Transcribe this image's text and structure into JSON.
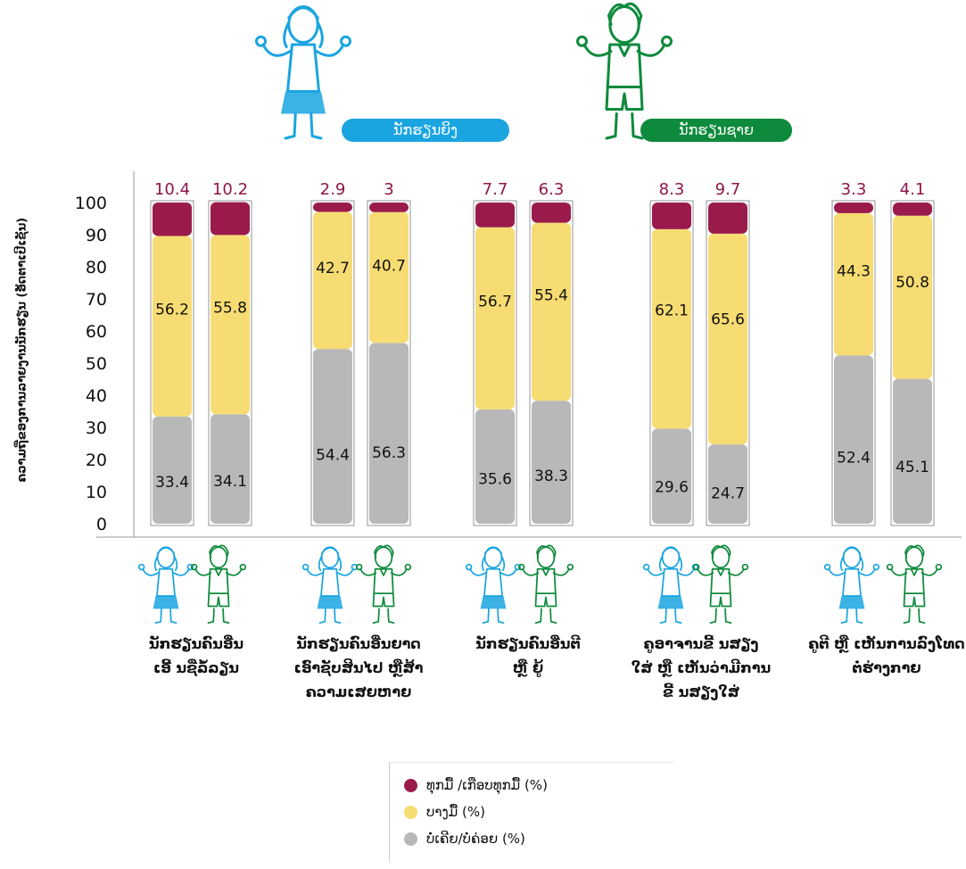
{
  "legend_colors": {
    "every": "#9a1b4b",
    "some": "#f7dc73",
    "never": "#b8b8b8",
    "girl": "#1aa5e0",
    "boy": "#0e8a3c"
  },
  "header": {
    "girl_label": "ນັກຮຽນຍິງ",
    "boy_label": "ນັກຮຽນຊາຍ"
  },
  "icons": {
    "girl": "girl-student-icon",
    "boy": "boy-student-icon"
  },
  "chart_data": {
    "type": "bar",
    "stacked": true,
    "ylabel": "ຄວາມຖີ່ຂອງການລາຍງານນັກຮຽນ (ອັດຕາເປີເຊັນ)",
    "ylim": [
      0,
      100
    ],
    "yticks": [
      0,
      10,
      20,
      30,
      40,
      50,
      60,
      70,
      80,
      90,
      100
    ],
    "grid": false,
    "categories": [
      "ນັກຮຽນຄົນອື່ນ\nເອີ້ ນຊື່ລໍ້ລຽນ",
      "ນັກຮຽນຄົນອື່ນຍາດ\nເອົາຊັບສິນໄປ ຫຼືສ້າ\nຄວາມເສຍຫາຍ",
      "ນັກຮຽນຄົນອື່ນຕີ\nຫຼື ຍູ້",
      "ຄູອາຈານຂີ້ ນສຽງ\nໃສ່ ຫຼື ເຫັນວ່າມີການ\nຂີ້ ນສຽງໃສ່",
      "ຄູຕີ ຫຼື ເຫັນການລົງໂທດ\nຕໍ່ຮ່າງກາຍ"
    ],
    "subcategories": [
      "ນັກຮຽນຍິງ",
      "ນັກຮຽນຊາຍ"
    ],
    "series": [
      {
        "name": "ບໍ່ເຄີຍ/ບໍ່ຄ່ອຍ (%)",
        "key": "never",
        "values": [
          [
            33.4,
            34.1
          ],
          [
            54.4,
            56.3
          ],
          [
            35.6,
            38.3
          ],
          [
            29.6,
            24.7
          ],
          [
            52.4,
            45.1
          ]
        ]
      },
      {
        "name": "ບາງມື້ (%)",
        "key": "some",
        "values": [
          [
            56.2,
            55.8
          ],
          [
            42.7,
            40.7
          ],
          [
            56.7,
            55.4
          ],
          [
            62.1,
            65.6
          ],
          [
            44.3,
            50.8
          ]
        ]
      },
      {
        "name": "ທຸກມື້ /ເກືອບທຸກມື້ (%)",
        "key": "every",
        "values": [
          [
            10.4,
            10.2
          ],
          [
            2.9,
            3
          ],
          [
            7.7,
            6.3
          ],
          [
            8.3,
            9.7
          ],
          [
            3.3,
            4.1
          ]
        ]
      }
    ],
    "legend": [
      "ທຸກມື້ /ເກືອບທຸກມື້ (%)",
      "ບາງມື້ (%)",
      "ບໍ່ເຄີຍ/ບໍ່ຄ່ອຍ (%)"
    ],
    "legend_position": "bottom-center"
  }
}
